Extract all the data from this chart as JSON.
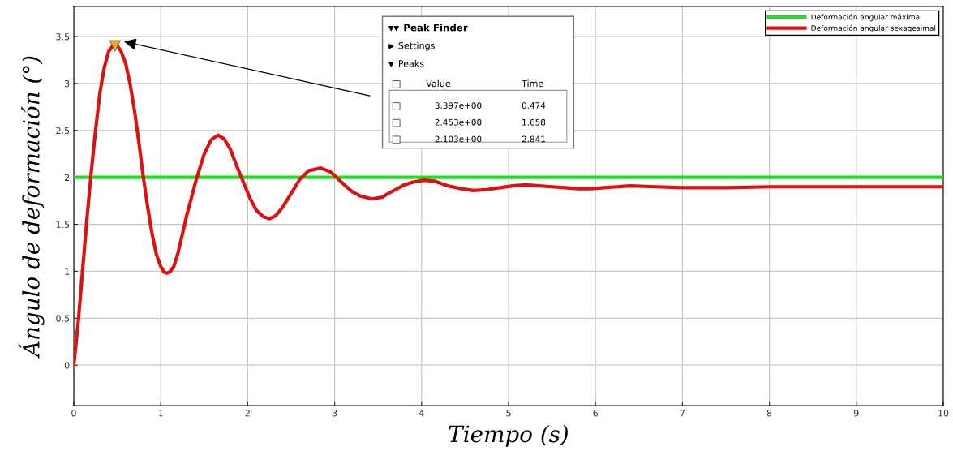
{
  "chart_data": {
    "type": "line",
    "xlabel": "Tiempo (s)",
    "ylabel": "Ángulo de deformación (°)",
    "xlim": [
      0,
      10
    ],
    "ylim": [
      -0.43,
      3.82
    ],
    "xticks": [
      0,
      1,
      2,
      3,
      4,
      5,
      6,
      7,
      8,
      9,
      10
    ],
    "yticks": [
      0,
      0.5,
      1,
      1.5,
      2,
      2.5,
      3,
      3.5
    ],
    "grid": true,
    "legend": "top right",
    "marker": "none",
    "line_style": "solid",
    "series": [
      {
        "name": "Deformación angular máxima",
        "color": "#22dd22",
        "x": [
          0,
          10
        ],
        "values": [
          2,
          2
        ]
      },
      {
        "name": "Deformación angular sexagesimal",
        "color": "#dd1111",
        "x": [
          0,
          0.05,
          0.1,
          0.15,
          0.2,
          0.25,
          0.3,
          0.35,
          0.4,
          0.44,
          0.474,
          0.51,
          0.55,
          0.6,
          0.65,
          0.7,
          0.75,
          0.8,
          0.85,
          0.9,
          0.95,
          1.0,
          1.04,
          1.07,
          1.1,
          1.15,
          1.2,
          1.25,
          1.3,
          1.4,
          1.5,
          1.58,
          1.658,
          1.73,
          1.8,
          1.87,
          1.95,
          2.03,
          2.1,
          2.18,
          2.25,
          2.32,
          2.4,
          2.5,
          2.6,
          2.7,
          2.841,
          2.95,
          3.0,
          3.1,
          3.2,
          3.3,
          3.43,
          3.55,
          3.6,
          3.7,
          3.8,
          3.9,
          4.03,
          4.15,
          4.3,
          4.45,
          4.6,
          4.75,
          4.9,
          5.05,
          5.2,
          5.35,
          5.5,
          5.65,
          5.8,
          5.95,
          6.1,
          6.25,
          6.4,
          6.7,
          7.0,
          7.5,
          8.0,
          9.0,
          10.0
        ],
        "values": [
          0,
          0.45,
          1.0,
          1.55,
          2.05,
          2.5,
          2.9,
          3.17,
          3.34,
          3.39,
          3.4,
          3.39,
          3.33,
          3.2,
          2.98,
          2.7,
          2.36,
          2.0,
          1.68,
          1.4,
          1.18,
          1.05,
          0.99,
          0.98,
          0.99,
          1.05,
          1.2,
          1.4,
          1.6,
          1.95,
          2.25,
          2.4,
          2.45,
          2.41,
          2.3,
          2.13,
          1.95,
          1.77,
          1.65,
          1.58,
          1.56,
          1.59,
          1.68,
          1.83,
          1.98,
          2.07,
          2.1,
          2.06,
          2.02,
          1.93,
          1.85,
          1.8,
          1.77,
          1.79,
          1.82,
          1.87,
          1.92,
          1.95,
          1.97,
          1.96,
          1.91,
          1.88,
          1.86,
          1.87,
          1.89,
          1.91,
          1.92,
          1.91,
          1.9,
          1.89,
          1.88,
          1.88,
          1.89,
          1.9,
          1.91,
          1.9,
          1.89,
          1.89,
          1.9,
          1.9,
          1.9
        ]
      },
      {
        "type": "scatter",
        "marker": "triangle",
        "color": "#f5a623",
        "x": [
          0.474
        ],
        "values": [
          3.4
        ]
      }
    ],
    "annotations": [
      "Peak Finder",
      "Settings",
      "Peaks",
      "Value",
      "Time",
      "3.397e+00",
      "0.474",
      "2.453e+00",
      "1.658",
      "2.103e+00",
      "2.841"
    ]
  }
}
